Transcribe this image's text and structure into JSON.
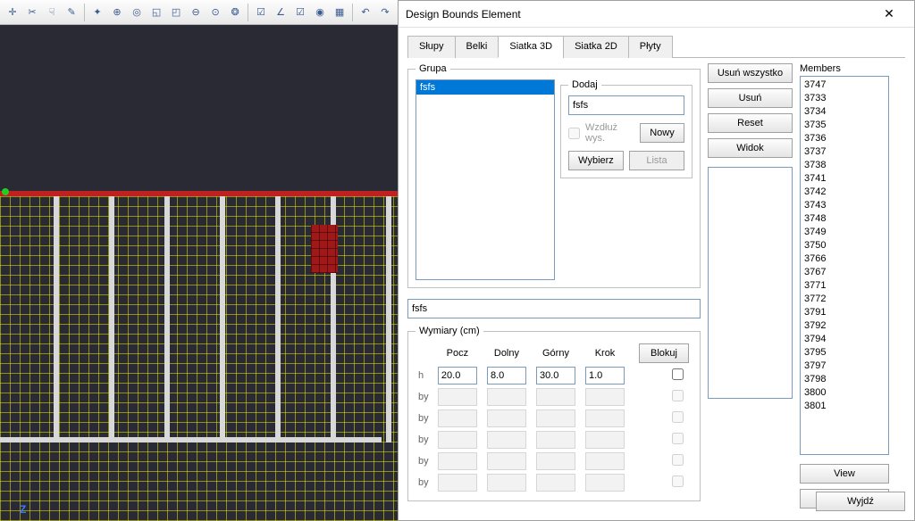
{
  "toolbar_icons": [
    "crosshair",
    "scissors",
    "hand",
    "pencil",
    "sep",
    "wand",
    "zoom-in",
    "zoom-fit",
    "zoom-win",
    "zoom-sel",
    "zoom-out",
    "zoom-all",
    "globe",
    "sep",
    "check-red",
    "angle",
    "check-orange",
    "target",
    "grid",
    "sep",
    "undo",
    "redo"
  ],
  "canvas": {
    "axis": "Z",
    "vstrut_x": [
      60,
      122,
      184,
      246,
      308,
      370,
      432
    ]
  },
  "dialog": {
    "title": "Design Bounds Element",
    "tabs": [
      "Słupy",
      "Belki",
      "Siatka 3D",
      "Siatka 2D",
      "Płyty"
    ],
    "active_tab": 2,
    "grupa_label": "Grupa",
    "grupa_items": [
      "fsfs"
    ],
    "dodaj": {
      "label": "Dodaj",
      "value": "fsfs",
      "wzdluz": "Wzdłuż wys.",
      "nowy": "Nowy",
      "wybierz": "Wybierz",
      "lista": "Lista"
    },
    "buttons": {
      "usun_wszystko": "Usuń wszystko",
      "usun": "Usuń",
      "reset": "Reset",
      "widok": "Widok",
      "view": "View",
      "wyjdz": "Wyjdź"
    },
    "name_field": "fsfs",
    "wymiary": {
      "label": "Wymiary (cm)",
      "cols": [
        "",
        "Pocz",
        "Dolny",
        "Górny",
        "Krok"
      ],
      "blokuj": "Blokuj",
      "rows": [
        {
          "name": "h",
          "v": [
            "20.0",
            "8.0",
            "30.0",
            "1.0"
          ],
          "enabled": true
        },
        {
          "name": "by",
          "v": [
            "",
            "",
            "",
            ""
          ],
          "enabled": false
        },
        {
          "name": "by",
          "v": [
            "",
            "",
            "",
            ""
          ],
          "enabled": false
        },
        {
          "name": "by",
          "v": [
            "",
            "",
            "",
            ""
          ],
          "enabled": false
        },
        {
          "name": "by",
          "v": [
            "",
            "",
            "",
            ""
          ],
          "enabled": false
        },
        {
          "name": "by",
          "v": [
            "",
            "",
            "",
            ""
          ],
          "enabled": false
        }
      ]
    },
    "members": {
      "label": "Members",
      "items": [
        "3747",
        "3733",
        "3734",
        "3735",
        "3736",
        "3737",
        "3738",
        "3741",
        "3742",
        "3743",
        "3748",
        "3749",
        "3750",
        "3766",
        "3767",
        "3771",
        "3772",
        "3791",
        "3792",
        "3794",
        "3795",
        "3797",
        "3798",
        "3800",
        "3801"
      ]
    }
  }
}
